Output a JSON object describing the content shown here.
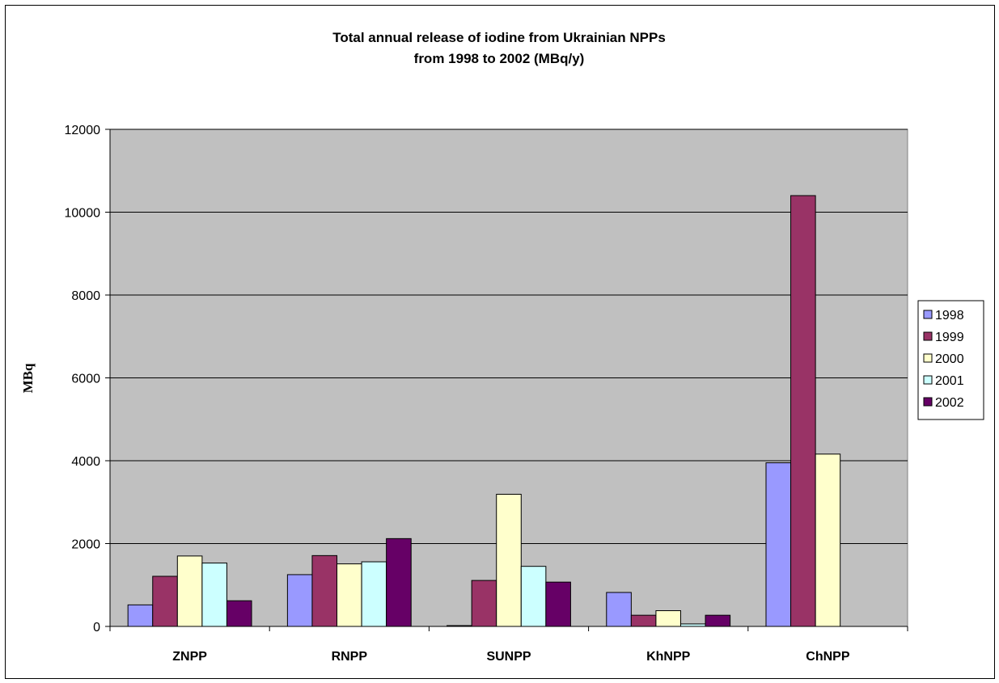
{
  "chart_data": {
    "type": "bar",
    "title_lines": [
      "Total annual release of iodine from Ukrainian NPPs",
      "from 1998 to 2002 (MBq/y)"
    ],
    "xlabel": "",
    "ylabel": "MBq",
    "ylim": [
      0,
      12000
    ],
    "yticks": [
      0,
      2000,
      4000,
      6000,
      8000,
      10000,
      12000
    ],
    "grid": true,
    "legend_position": "right",
    "plot_background": "#c0c0c0",
    "categories": [
      "ZNPP",
      "RNPP",
      "SUNPP",
      "KhNPP",
      "ChNPP"
    ],
    "series": [
      {
        "name": "1998",
        "color": "#9999ff",
        "values": [
          520,
          1250,
          20,
          820,
          3950
        ]
      },
      {
        "name": "1999",
        "color": "#993366",
        "values": [
          1210,
          1710,
          1110,
          270,
          10400
        ]
      },
      {
        "name": "2000",
        "color": "#ffffcc",
        "values": [
          1700,
          1510,
          3190,
          380,
          4160
        ]
      },
      {
        "name": "2001",
        "color": "#ccffff",
        "values": [
          1530,
          1560,
          1450,
          60,
          0
        ]
      },
      {
        "name": "2002",
        "color": "#660066",
        "values": [
          620,
          2120,
          1070,
          270,
          0
        ]
      }
    ]
  }
}
